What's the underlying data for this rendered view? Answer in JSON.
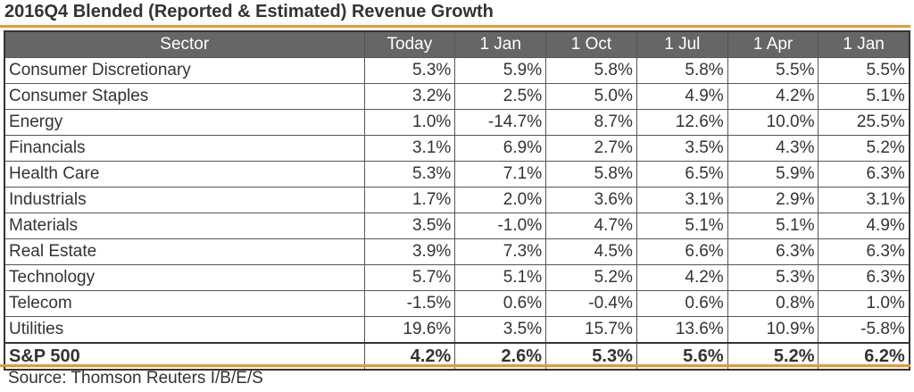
{
  "chart_data": {
    "type": "table",
    "title": "2016Q4 Blended (Reported & Estimated) Revenue Growth",
    "columns": [
      "Sector",
      "Today",
      "1 Jan",
      "1 Oct",
      "1 Jul",
      "1 Apr",
      "1 Jan"
    ],
    "rows": [
      {
        "sector": "Consumer Discretionary",
        "values": [
          "5.3%",
          "5.9%",
          "5.8%",
          "5.8%",
          "5.5%",
          "5.5%"
        ]
      },
      {
        "sector": "Consumer Staples",
        "values": [
          "3.2%",
          "2.5%",
          "5.0%",
          "4.9%",
          "4.2%",
          "5.1%"
        ]
      },
      {
        "sector": "Energy",
        "values": [
          "1.0%",
          "-14.7%",
          "8.7%",
          "12.6%",
          "10.0%",
          "25.5%"
        ]
      },
      {
        "sector": "Financials",
        "values": [
          "3.1%",
          "6.9%",
          "2.7%",
          "3.5%",
          "4.3%",
          "5.2%"
        ]
      },
      {
        "sector": "Health Care",
        "values": [
          "5.3%",
          "7.1%",
          "5.8%",
          "6.5%",
          "5.9%",
          "6.3%"
        ]
      },
      {
        "sector": "Industrials",
        "values": [
          "1.7%",
          "2.0%",
          "3.6%",
          "3.1%",
          "2.9%",
          "3.1%"
        ]
      },
      {
        "sector": "Materials",
        "values": [
          "3.5%",
          "-1.0%",
          "4.7%",
          "5.1%",
          "5.1%",
          "4.9%"
        ]
      },
      {
        "sector": "Real Estate",
        "values": [
          "3.9%",
          "7.3%",
          "4.5%",
          "6.6%",
          "6.3%",
          "6.3%"
        ]
      },
      {
        "sector": "Technology",
        "values": [
          "5.7%",
          "5.1%",
          "5.2%",
          "4.2%",
          "5.3%",
          "6.3%"
        ]
      },
      {
        "sector": "Telecom",
        "values": [
          "-1.5%",
          "0.6%",
          "-0.4%",
          "0.6%",
          "0.8%",
          "1.0%"
        ]
      },
      {
        "sector": "Utilities",
        "values": [
          "19.6%",
          "3.5%",
          "15.7%",
          "13.6%",
          "10.9%",
          "-5.8%"
        ]
      }
    ],
    "total": {
      "sector": "S&P 500",
      "values": [
        "4.2%",
        "2.6%",
        "5.3%",
        "5.6%",
        "5.2%",
        "6.2%"
      ]
    },
    "source": "Source: Thomson Reuters I/B/E/S"
  },
  "colors": {
    "accent": "#e8972e",
    "header_bg": "#666666",
    "header_text": "#ffffff"
  }
}
